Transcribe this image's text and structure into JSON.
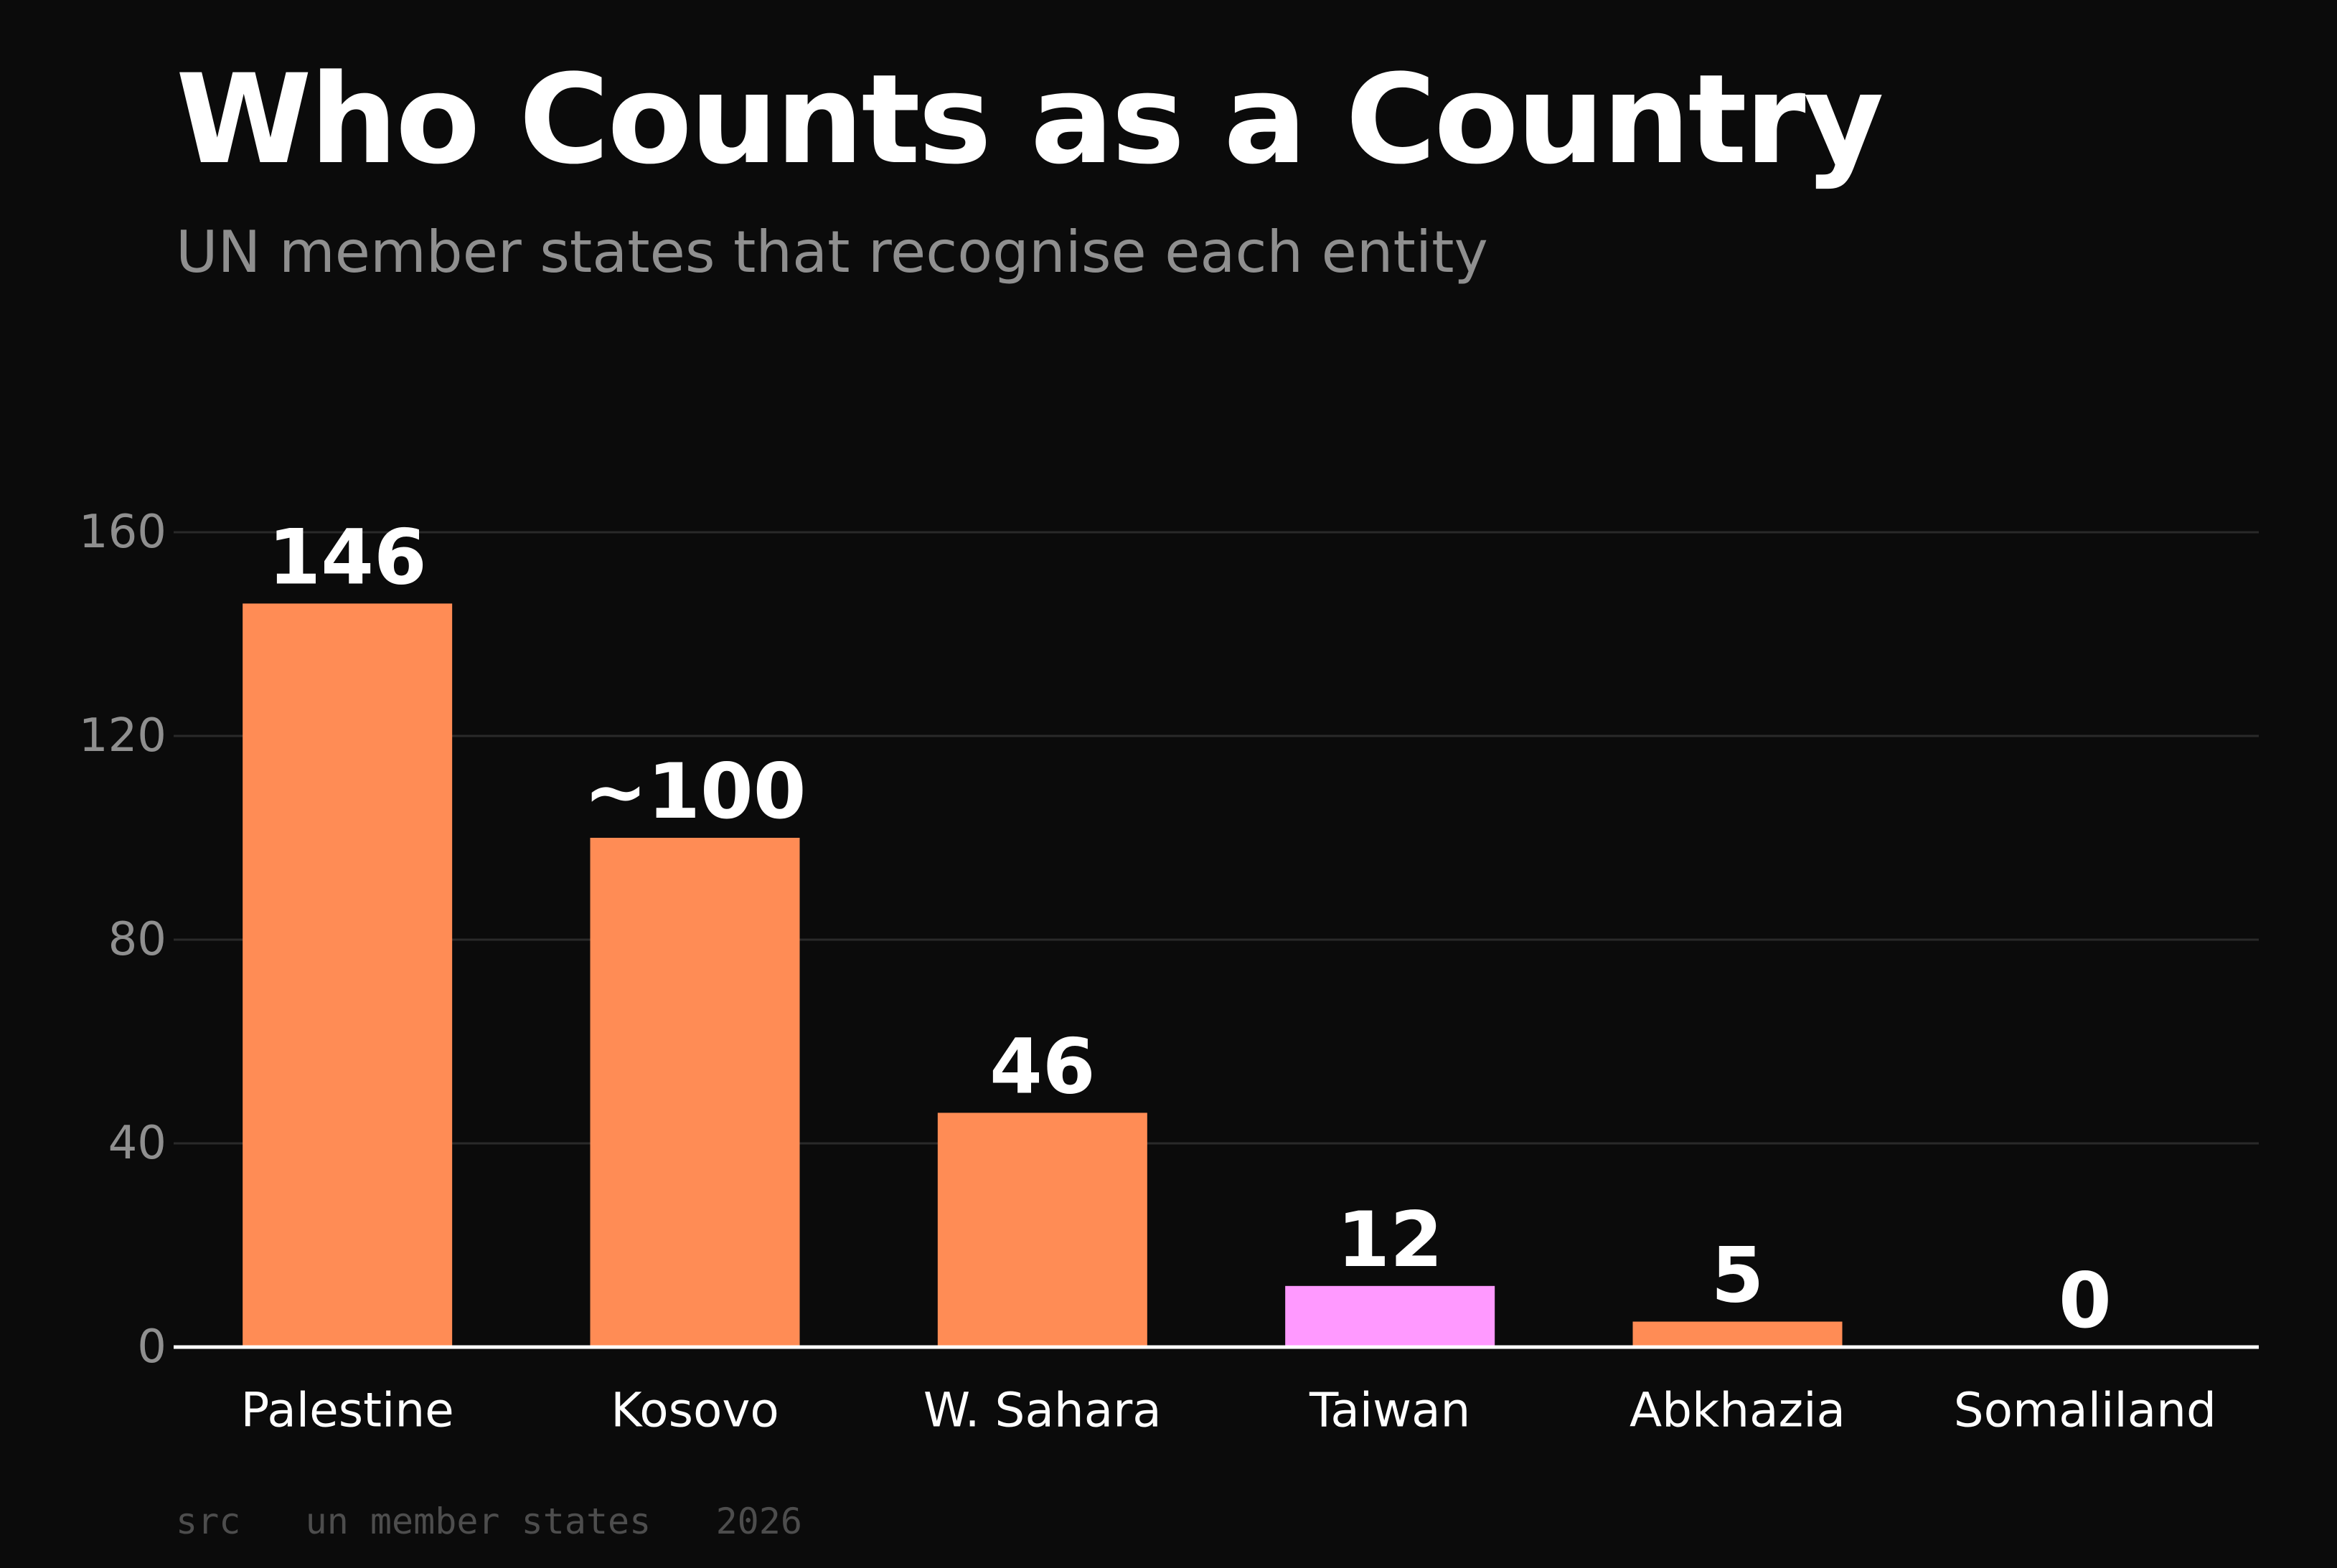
{
  "title": "Who Counts as a Country",
  "subtitle": "UN member states that recognise each entity",
  "source": "src   un member states   2026",
  "colors": {
    "background": "#0b0b0b",
    "bar": "#ff8c55",
    "highlight": "#ff99ff",
    "grid": "#2a2a2a",
    "axis": "#ffffff",
    "tick_label": "#8f8f8f",
    "value_label": "#ffffff",
    "category_label": "#ffffff"
  },
  "chart_data": {
    "type": "bar",
    "categories": [
      "Palestine",
      "Kosovo",
      "W. Sahara",
      "Taiwan",
      "Abkhazia",
      "Somaliland"
    ],
    "values": [
      146,
      100,
      46,
      12,
      5,
      0
    ],
    "value_labels": [
      "146",
      "~100",
      "46",
      "12",
      "5",
      "0"
    ],
    "highlight_category": "Taiwan",
    "yticks": [
      0,
      40,
      80,
      120,
      160
    ],
    "ylim": [
      0,
      160
    ],
    "grid": true,
    "legend": "none",
    "xlabel": "",
    "ylabel": ""
  }
}
